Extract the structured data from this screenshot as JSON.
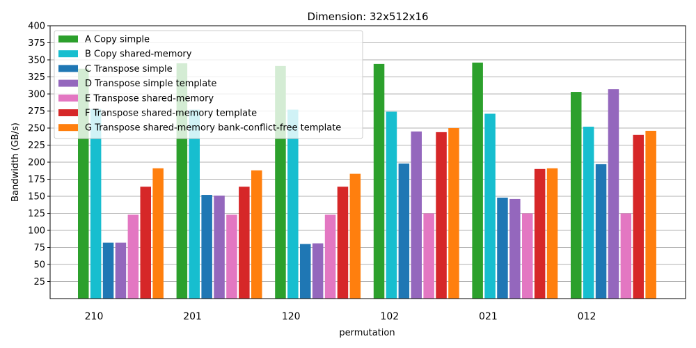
{
  "chart_data": {
    "type": "bar",
    "title": "Dimension: 32x512x16",
    "xlabel": "permutation",
    "ylabel": "Bandwidth (GB/s)",
    "ylim": [
      0,
      400
    ],
    "yticks": [
      25,
      50,
      75,
      100,
      125,
      150,
      175,
      200,
      225,
      250,
      275,
      300,
      325,
      350,
      375,
      400
    ],
    "grid": "horizontal",
    "legend_position": "top-left",
    "categories": [
      "210",
      "201",
      "120",
      "102",
      "021",
      "012"
    ],
    "series": [
      {
        "name": "A Copy simple",
        "color": "#2ca02c",
        "values": [
          337,
          345,
          341,
          344,
          346,
          303
        ]
      },
      {
        "name": "B Copy shared-memory",
        "color": "#17becf",
        "values": [
          278,
          277,
          277,
          274,
          271,
          252
        ]
      },
      {
        "name": "C Transpose simple",
        "color": "#1f77b4",
        "values": [
          82,
          152,
          80,
          198,
          148,
          197
        ]
      },
      {
        "name": "D Transpose simple template",
        "color": "#9467bd",
        "values": [
          82,
          151,
          81,
          245,
          146,
          307
        ]
      },
      {
        "name": "E Transpose shared-memory",
        "color": "#e377c2",
        "values": [
          123,
          123,
          123,
          125,
          125,
          125
        ]
      },
      {
        "name": "F Transpose shared-memory template",
        "color": "#d62728",
        "values": [
          164,
          164,
          164,
          244,
          190,
          240
        ]
      },
      {
        "name": "G Transpose shared-memory bank-conflict-free template",
        "color": "#ff7f0e",
        "values": [
          191,
          188,
          183,
          250,
          191,
          246
        ]
      }
    ]
  }
}
